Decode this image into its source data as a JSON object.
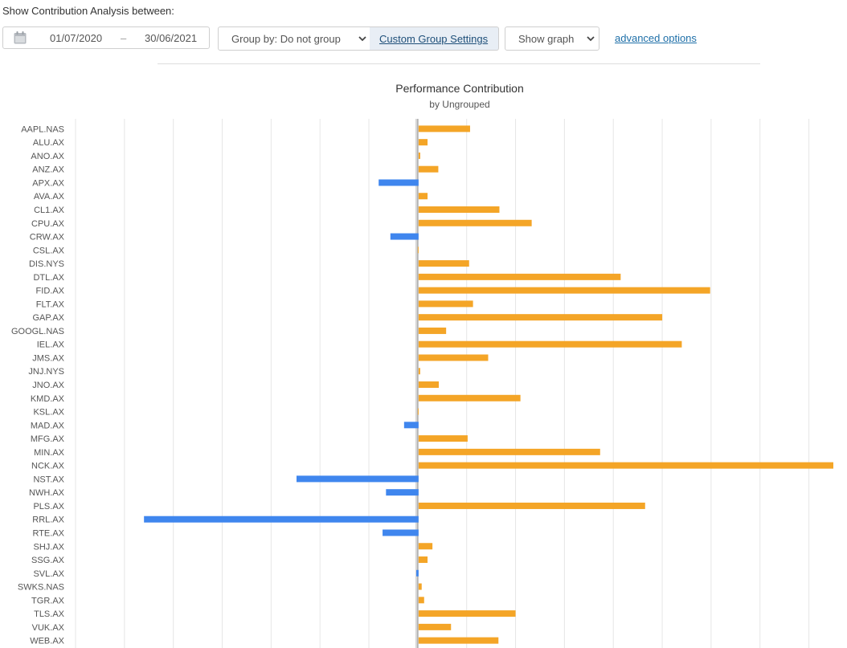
{
  "header": {
    "intro_text": "Show Contribution Analysis between:",
    "date_from": "01/07/2020",
    "date_separator": "–",
    "date_to": "30/06/2021",
    "calendar_icon": "calendar-icon"
  },
  "toolbar": {
    "group_by_label": "Group by: Do not group",
    "custom_group_label": "Custom Group Settings",
    "show_graph_label": "Show graph",
    "advanced_options_label": "advanced options"
  },
  "colors": {
    "positive": "#f4a527",
    "negative": "#3f86ee",
    "gridline": "#e6e6e6",
    "zero_line": "#c0c0c0",
    "link": "#1e6fa8"
  },
  "chart_data": {
    "type": "bar",
    "orientation": "horizontal",
    "title": "Performance Contribution",
    "subtitle": "by Ungrouped",
    "grid": true,
    "categories": [
      "AAPL.NAS",
      "ALU.AX",
      "ANO.AX",
      "ANZ.AX",
      "APX.AX",
      "AVA.AX",
      "CL1.AX",
      "CPU.AX",
      "CRW.AX",
      "CSL.AX",
      "DIS.NYS",
      "DTL.AX",
      "FID.AX",
      "FLT.AX",
      "GAP.AX",
      "GOOGL.NAS",
      "IEL.AX",
      "JMS.AX",
      "JNJ.NYS",
      "JNO.AX",
      "KMD.AX",
      "KSL.AX",
      "MAD.AX",
      "MFG.AX",
      "MIN.AX",
      "NCK.AX",
      "NST.AX",
      "NWH.AX",
      "PLS.AX",
      "RRL.AX",
      "RTE.AX",
      "SHJ.AX",
      "SSG.AX",
      "SVL.AX",
      "SWKS.NAS",
      "TGR.AX",
      "TLS.AX",
      "VUK.AX",
      "WEB.AX"
    ],
    "values": [
      1.07,
      0.2,
      0.05,
      0.42,
      -0.8,
      0.2,
      1.67,
      2.33,
      -0.56,
      0.0,
      1.05,
      4.15,
      5.98,
      1.13,
      5.0,
      0.58,
      5.4,
      1.44,
      0.02,
      0.43,
      2.1,
      0.0,
      -0.28,
      1.02,
      3.73,
      8.5,
      -2.48,
      -0.65,
      4.65,
      -5.6,
      -0.72,
      0.3,
      0.2,
      -0.03,
      0.08,
      0.13,
      2.0,
      0.68,
      1.65
    ],
    "xlim": [
      -7,
      8.5
    ]
  }
}
